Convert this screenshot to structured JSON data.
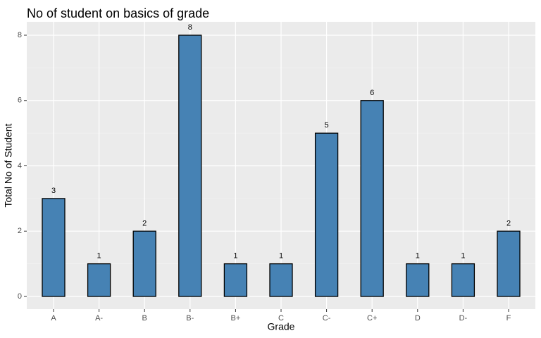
{
  "chart_data": {
    "type": "bar",
    "title": "No of student on basics of grade",
    "xlabel": "Grade",
    "ylabel": "Total No of Student",
    "categories": [
      "A",
      "A-",
      "B",
      "B-",
      "B+",
      "C",
      "C-",
      "C+",
      "D",
      "D-",
      "F"
    ],
    "values": [
      3,
      1,
      2,
      8,
      1,
      1,
      5,
      6,
      1,
      1,
      2
    ],
    "data_labels": [
      "3",
      "1",
      "2",
      "8",
      "1",
      "1",
      "5",
      "6",
      "1",
      "1",
      "2"
    ],
    "ylim": [
      0,
      8.4
    ],
    "yticks": [
      0,
      2,
      4,
      6,
      8
    ],
    "ytick_labels": [
      "0",
      "2",
      "4",
      "6",
      "8"
    ],
    "grid": true,
    "legend": "none",
    "colors": {
      "bar_fill": "#4682B4",
      "bar_stroke": "#000000",
      "panel_background": "#EBEBEB",
      "grid_major": "#FFFFFF",
      "grid_minor": "#F5F5F5"
    }
  }
}
